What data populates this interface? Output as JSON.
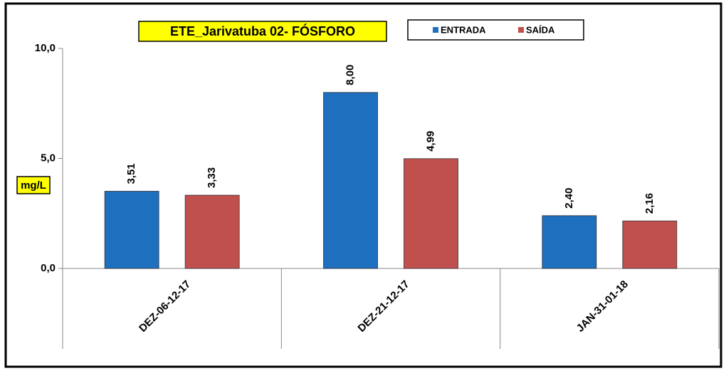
{
  "chart_data": {
    "type": "bar",
    "title": "ETE_Jarivatuba 02- FÓSFORO",
    "y_label": "mg/L",
    "categories": [
      "DEZ-06-12-17",
      "DEZ-21-12-17",
      "JAN-31-01-18"
    ],
    "series": [
      {
        "name": "ENTRADA",
        "color": "#1F6FBF",
        "values": [
          3.51,
          8.0,
          2.4
        ],
        "value_labels": [
          "3,51",
          "8,00",
          "2,40"
        ]
      },
      {
        "name": "SAÍDA",
        "color": "#C0504D",
        "values": [
          3.33,
          4.99,
          2.16
        ],
        "value_labels": [
          "3,33",
          "4,99",
          "2,16"
        ]
      }
    ],
    "ylim": [
      0,
      10
    ],
    "yticks": [
      {
        "value": 0,
        "label": "0,0"
      },
      {
        "value": 5,
        "label": "5,0"
      },
      {
        "value": 10,
        "label": "10,0"
      }
    ],
    "legend": "top"
  }
}
